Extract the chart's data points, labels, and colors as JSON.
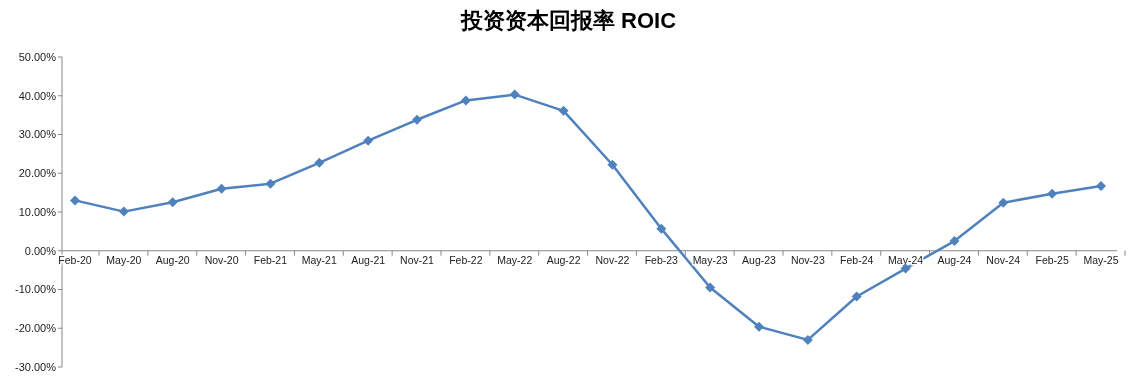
{
  "chart_data": {
    "type": "line",
    "title": "投资资本回报率 ROIC",
    "categories": [
      "Feb-20",
      "May-20",
      "Aug-20",
      "Nov-20",
      "Feb-21",
      "May-21",
      "Aug-21",
      "Nov-21",
      "Feb-22",
      "May-22",
      "Aug-22",
      "Nov-22",
      "Feb-23",
      "May-23",
      "Aug-23",
      "Nov-23",
      "Feb-24",
      "May-24",
      "Aug-24",
      "Nov-24",
      "Feb-25",
      "May-25"
    ],
    "series": [
      {
        "color": "#4f81bd",
        "values": [
          13.0,
          10.1,
          12.5,
          16.0,
          17.3,
          22.7,
          28.4,
          33.8,
          38.8,
          40.3,
          36.1,
          22.2,
          5.7,
          -9.5,
          -19.6,
          -23.0,
          -11.8,
          -4.6,
          2.5,
          12.4,
          14.7,
          16.7
        ]
      }
    ],
    "ylim": [
      -30,
      50
    ],
    "yticks": [
      {
        "value": -30,
        "label": "-30.00%"
      },
      {
        "value": -20,
        "label": "-20.00%"
      },
      {
        "value": -10,
        "label": "-10.00%"
      },
      {
        "value": 0,
        "label": "0.00%"
      },
      {
        "value": 10,
        "label": "10.00%"
      },
      {
        "value": 20,
        "label": "20.00%"
      },
      {
        "value": 30,
        "label": "30.00%"
      },
      {
        "value": 40,
        "label": "40.00%"
      },
      {
        "value": 50,
        "label": "50.00%"
      }
    ],
    "marker": "diamond",
    "line_style": "solid"
  }
}
